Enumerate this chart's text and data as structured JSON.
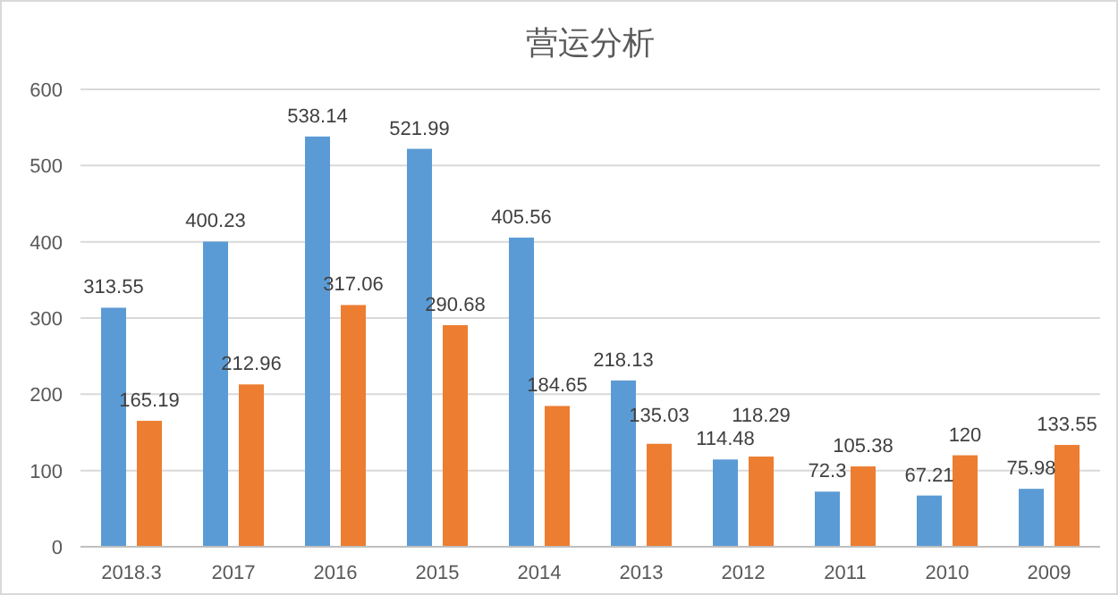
{
  "chart_data": {
    "type": "bar",
    "title": "营运分析",
    "categories": [
      "2018.3",
      "2017",
      "2016",
      "2015",
      "2014",
      "2013",
      "2012",
      "2011",
      "2010",
      "2009"
    ],
    "series": [
      {
        "color": "#5b9bd5",
        "values": [
          313.55,
          400.23,
          538.14,
          521.99,
          405.56,
          218.13,
          114.48,
          72.3,
          67.21,
          75.98
        ]
      },
      {
        "color": "#ed7d31",
        "values": [
          165.19,
          212.96,
          317.06,
          290.68,
          184.65,
          135.03,
          118.29,
          105.38,
          120,
          133.55
        ]
      }
    ],
    "ylim": [
      0,
      600
    ],
    "yticks": [
      0,
      100,
      200,
      300,
      400,
      500,
      600
    ],
    "grid": "y",
    "data_labels": true
  }
}
